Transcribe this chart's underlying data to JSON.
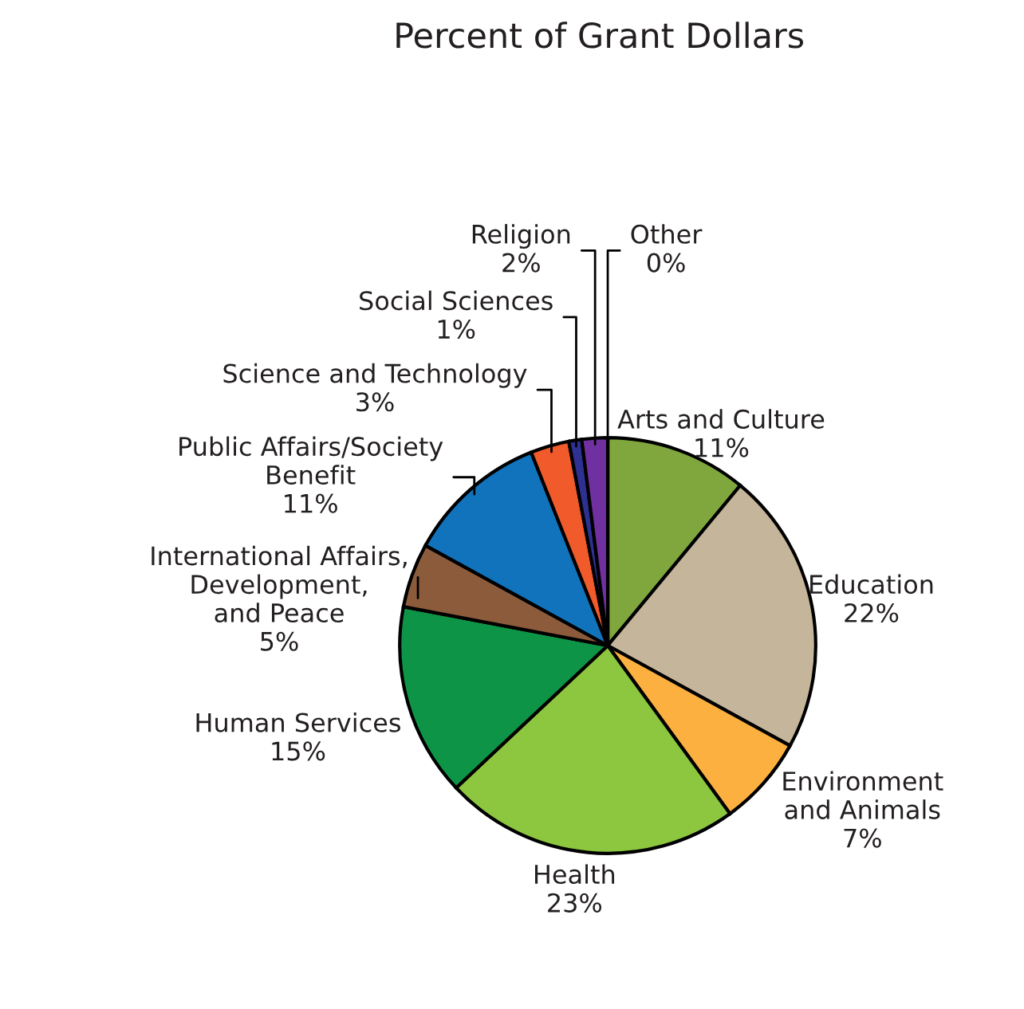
{
  "chart_data": {
    "type": "pie",
    "title": "Percent of Grant Dollars",
    "categories": [
      "Arts and Culture",
      "Education",
      "Environment\nand Animals",
      "Health",
      "Human Services",
      "International Affairs,\nDevelopment,\nand Peace",
      "Public Affairs/Society\nBenefit",
      "Science and Technology",
      "Social Sciences",
      "Religion",
      "Other"
    ],
    "values": [
      11,
      22,
      7,
      23,
      15,
      5,
      11,
      3,
      1,
      2,
      0
    ],
    "value_labels": [
      "11%",
      "22%",
      "7%",
      "23%",
      "15%",
      "5%",
      "11%",
      "3%",
      "1%",
      "2%",
      "0%"
    ],
    "colors": [
      "#7fa73d",
      "#c5b59a",
      "#fbb040",
      "#8dc63f",
      "#0e9447",
      "#8c5b3b",
      "#1273bd",
      "#f15a2b",
      "#2e3192",
      "#7030a0",
      "#999999"
    ],
    "legend": false
  }
}
